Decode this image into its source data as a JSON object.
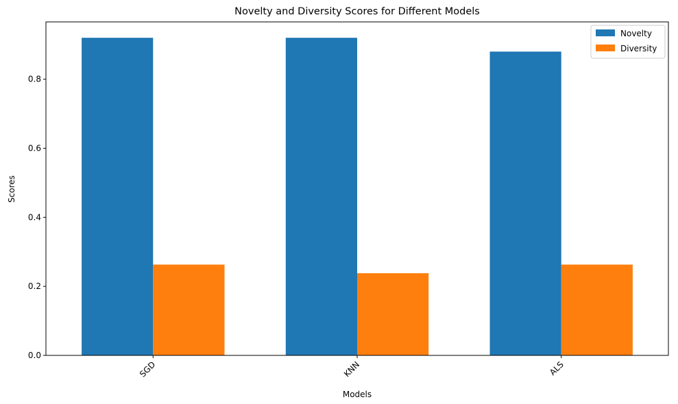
{
  "chart_data": {
    "type": "bar",
    "title": "Novelty and Diversity Scores for Different Models",
    "xlabel": "Models",
    "ylabel": "Scores",
    "categories": [
      "SGD",
      "KNN",
      "ALS"
    ],
    "series": [
      {
        "name": "Novelty",
        "color": "#1f77b4",
        "values": [
          0.92,
          0.92,
          0.88
        ]
      },
      {
        "name": "Diversity",
        "color": "#ff7f0e",
        "values": [
          0.263,
          0.238,
          0.263
        ]
      }
    ],
    "ylim": [
      0,
      0.966
    ],
    "yticks": [
      0.0,
      0.2,
      0.4,
      0.6,
      0.8
    ],
    "ytick_labels": [
      "0.0",
      "0.2",
      "0.4",
      "0.6",
      "0.8"
    ],
    "xtick_rotation": 45,
    "grid": false,
    "legend": "top-right"
  }
}
